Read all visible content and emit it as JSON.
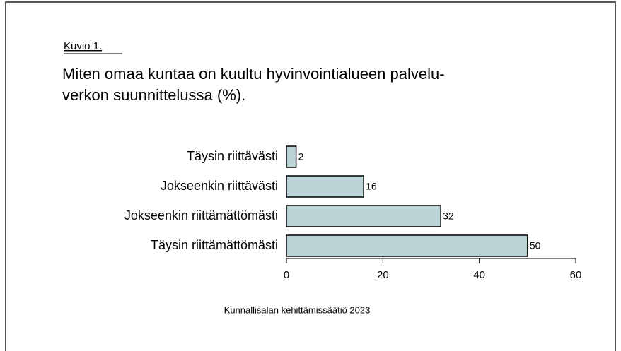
{
  "chart_data": {
    "type": "barh",
    "label": "Kuvio 1.",
    "title": [
      "Miten omaa kuntaa on kuultu hyvinvointialueen palvelu-",
      "verkon suunnittelussa (%)."
    ],
    "categories": [
      "Täysin riittävästi",
      "Jokseenkin riittävästi",
      "Jokseenkin riittämättömästi",
      "Täysin riittämättömästi"
    ],
    "values": [
      2,
      16,
      32,
      50
    ],
    "color": "#b9d3d6",
    "xlim": [
      0,
      60
    ],
    "xticks": [
      0,
      20,
      40,
      60
    ],
    "source": "Kunnallisalan kehittämissäätiö 2023"
  }
}
